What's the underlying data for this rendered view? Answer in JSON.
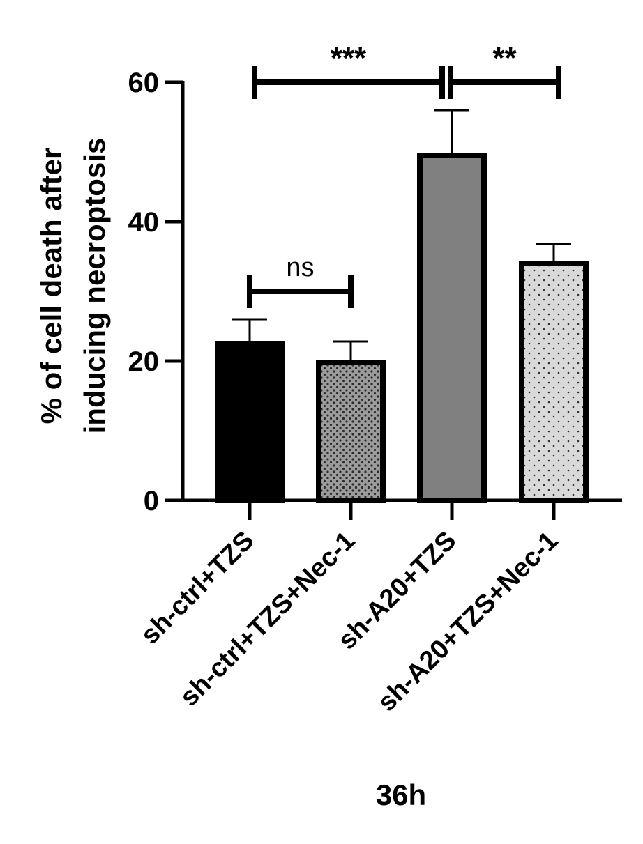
{
  "chart_data": {
    "type": "bar",
    "categories": [
      "sh-ctrl+TZS",
      "sh-ctrl+TZS+Nec-1",
      "sh-A20+TZS",
      "sh-A20+TZS+Nec-1"
    ],
    "values": [
      22.5,
      19.8,
      49.5,
      34.0
    ],
    "error_upper": [
      26.0,
      22.8,
      56.0,
      36.8
    ],
    "bar_styles": [
      {
        "fill": "#000000",
        "pattern": "solid"
      },
      {
        "fill": "#9b9b9b",
        "pattern": "dense-dots"
      },
      {
        "fill": "#808080",
        "pattern": "solid"
      },
      {
        "fill": "#d9d9d9",
        "pattern": "sparse-dots"
      }
    ],
    "ylabel_lines": [
      "% of cell death after",
      "inducing necroptosis"
    ],
    "xlabel": "36h",
    "ylim": [
      0,
      60
    ],
    "yticks": [
      "0",
      "20",
      "40",
      "60"
    ],
    "significance": [
      {
        "from": 0,
        "to": 1,
        "label": "ns"
      },
      {
        "from": 0,
        "to": 2,
        "label": "***"
      },
      {
        "from": 2,
        "to": 3,
        "label": "**"
      }
    ],
    "grid": false,
    "legend": "none"
  }
}
